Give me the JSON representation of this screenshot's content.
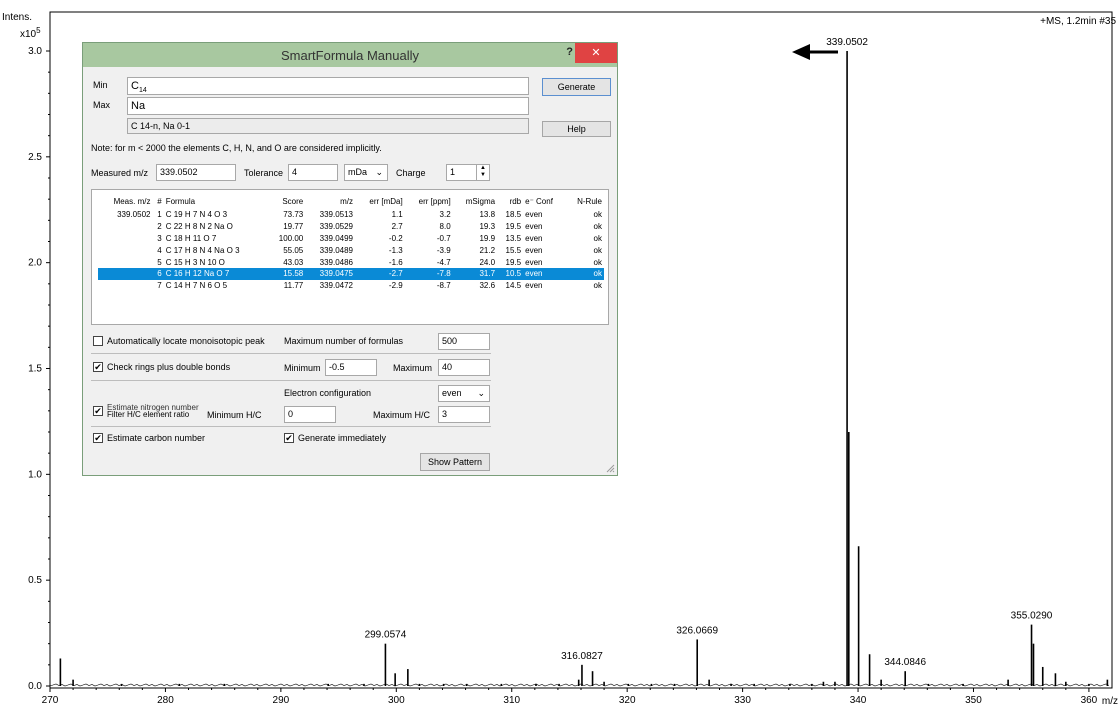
{
  "spectrum": {
    "y_title_line1": "Intens.",
    "y_title_line2": "x10",
    "y_exponent": "5",
    "scan_info": "+MS, 1.2min #35",
    "x_unit": "m/z",
    "x_ticks": [
      "270",
      "280",
      "290",
      "300",
      "310",
      "320",
      "330",
      "340",
      "350",
      "360"
    ],
    "y_ticks": [
      "0.0",
      "0.5",
      "1.0",
      "1.5",
      "2.0",
      "2.5",
      "3.0"
    ],
    "arrow_icon": "left-arrow-icon"
  },
  "chart_data": {
    "type": "bar",
    "xlabel": "m/z",
    "ylabel": "Intens. x10^5",
    "xlim": [
      270,
      362
    ],
    "ylim": [
      0,
      3.1
    ],
    "peaks": [
      {
        "mz": 270.9,
        "i": 0.13
      },
      {
        "mz": 272.0,
        "i": 0.03
      },
      {
        "mz": 276.2,
        "i": 0.01
      },
      {
        "mz": 281.2,
        "i": 0.01
      },
      {
        "mz": 285.1,
        "i": 0.01
      },
      {
        "mz": 294.1,
        "i": 0.01
      },
      {
        "mz": 297.2,
        "i": 0.01
      },
      {
        "mz": 299.0574,
        "i": 0.2,
        "label": "299.0574"
      },
      {
        "mz": 299.9,
        "i": 0.06
      },
      {
        "mz": 301.0,
        "i": 0.08
      },
      {
        "mz": 302.0,
        "i": 0.01
      },
      {
        "mz": 304.1,
        "i": 0.01
      },
      {
        "mz": 306.1,
        "i": 0.01
      },
      {
        "mz": 309.1,
        "i": 0.01
      },
      {
        "mz": 312.1,
        "i": 0.01
      },
      {
        "mz": 314.1,
        "i": 0.01
      },
      {
        "mz": 315.8,
        "i": 0.03
      },
      {
        "mz": 316.0827,
        "i": 0.1,
        "label": "316.0827"
      },
      {
        "mz": 317.0,
        "i": 0.07
      },
      {
        "mz": 318.0,
        "i": 0.02
      },
      {
        "mz": 320.1,
        "i": 0.01
      },
      {
        "mz": 322.1,
        "i": 0.01
      },
      {
        "mz": 324.1,
        "i": 0.01
      },
      {
        "mz": 326.0669,
        "i": 0.22,
        "label": "326.0669"
      },
      {
        "mz": 327.1,
        "i": 0.03
      },
      {
        "mz": 329.0,
        "i": 0.01
      },
      {
        "mz": 331.0,
        "i": 0.01
      },
      {
        "mz": 334.1,
        "i": 0.01
      },
      {
        "mz": 336.0,
        "i": 0.01
      },
      {
        "mz": 337.0,
        "i": 0.02
      },
      {
        "mz": 338.0,
        "i": 0.02
      },
      {
        "mz": 339.0502,
        "i": 3.0,
        "label": "339.0502"
      },
      {
        "mz": 339.2,
        "i": 1.2
      },
      {
        "mz": 340.05,
        "i": 0.66
      },
      {
        "mz": 341.0,
        "i": 0.15
      },
      {
        "mz": 342.0,
        "i": 0.03
      },
      {
        "mz": 344.0846,
        "i": 0.07,
        "label": "344.0846"
      },
      {
        "mz": 346.1,
        "i": 0.01
      },
      {
        "mz": 349.1,
        "i": 0.01
      },
      {
        "mz": 353.0,
        "i": 0.03
      },
      {
        "mz": 355.029,
        "i": 0.29,
        "label": "355.0290"
      },
      {
        "mz": 355.2,
        "i": 0.2
      },
      {
        "mz": 356.0,
        "i": 0.09
      },
      {
        "mz": 357.1,
        "i": 0.06
      },
      {
        "mz": 358.0,
        "i": 0.02
      },
      {
        "mz": 360.0,
        "i": 0.01
      },
      {
        "mz": 361.6,
        "i": 0.03
      }
    ]
  },
  "dialog": {
    "title": "SmartFormula Manually",
    "help_glyph": "?",
    "close_glyph": "✕",
    "min_label": "Min",
    "min_value": "C",
    "min_sub": "14",
    "max_label": "Max",
    "max_value": "Na",
    "summary": "C 14-n, Na 0-1",
    "generate_label": "Generate",
    "help_label": "Help",
    "note": "Note: for m < 2000 the elements C, H, N, and O are considered implicitly.",
    "measured_label": "Measured m/z",
    "measured_value": "339.0502",
    "tolerance_label": "Tolerance",
    "tolerance_value": "4",
    "tolerance_unit": "mDa",
    "charge_label": "Charge",
    "charge_value": "1",
    "columns": [
      "Meas. m/z",
      "#",
      "Formula",
      "Score",
      "m/z",
      "err [mDa]",
      "err [ppm]",
      "mSigma",
      "rdb",
      "e⁻ Conf",
      "N-Rule"
    ],
    "rows": [
      [
        "339.0502",
        "1",
        "C 19 H 7 N 4 O 3",
        "73.73",
        "339.0513",
        "1.1",
        "3.2",
        "13.8",
        "18.5",
        "even",
        "ok"
      ],
      [
        "",
        "2",
        "C 22 H 8 N 2 Na O",
        "19.77",
        "339.0529",
        "2.7",
        "8.0",
        "19.3",
        "19.5",
        "even",
        "ok"
      ],
      [
        "",
        "3",
        "C 18 H 11 O 7",
        "100.00",
        "339.0499",
        "-0.2",
        "-0.7",
        "19.9",
        "13.5",
        "even",
        "ok"
      ],
      [
        "",
        "4",
        "C 17 H 8 N 4 Na O 3",
        "55.05",
        "339.0489",
        "-1.3",
        "-3.9",
        "21.2",
        "15.5",
        "even",
        "ok"
      ],
      [
        "",
        "5",
        "C 15 H 3 N 10 O",
        "43.03",
        "339.0486",
        "-1.6",
        "-4.7",
        "24.0",
        "19.5",
        "even",
        "ok"
      ],
      [
        "",
        "6",
        "C 16 H 12 Na O 7",
        "15.58",
        "339.0475",
        "-2.7",
        "-7.8",
        "31.7",
        "10.5",
        "even",
        "ok"
      ],
      [
        "",
        "7",
        "C 14 H 7 N 6 O 5",
        "11.77",
        "339.0472",
        "-2.9",
        "-8.7",
        "32.6",
        "14.5",
        "even",
        "ok"
      ]
    ],
    "selected_row": 5,
    "auto_locate_label": "Automatically locate monoisotopic peak",
    "auto_locate_checked": false,
    "max_formulas_label": "Maximum number of formulas",
    "max_formulas_value": "500",
    "rings_label": "Check rings plus double bonds",
    "rings_checked": true,
    "rdb_min_label": "Minimum",
    "rdb_min_value": "-0.5",
    "rdb_max_label": "Maximum",
    "rdb_max_value": "40",
    "electron_label": "Electron configuration",
    "electron_value": "even",
    "hc_filter_label": "Filter H/C element ratio",
    "estimate_nitrogen_label": "Estimate nitrogen number",
    "hc_min_label": "Minimum H/C",
    "hc_min_value": "0",
    "hc_max_label": "Maximum H/C",
    "hc_max_value": "3",
    "estimate_carbon_label": "Estimate carbon number",
    "estimate_carbon_checked": true,
    "generate_immediately_label": "Generate immediately",
    "generate_immediately_checked": true,
    "show_pattern_label": "Show Pattern",
    "check_glyph": "✔"
  }
}
